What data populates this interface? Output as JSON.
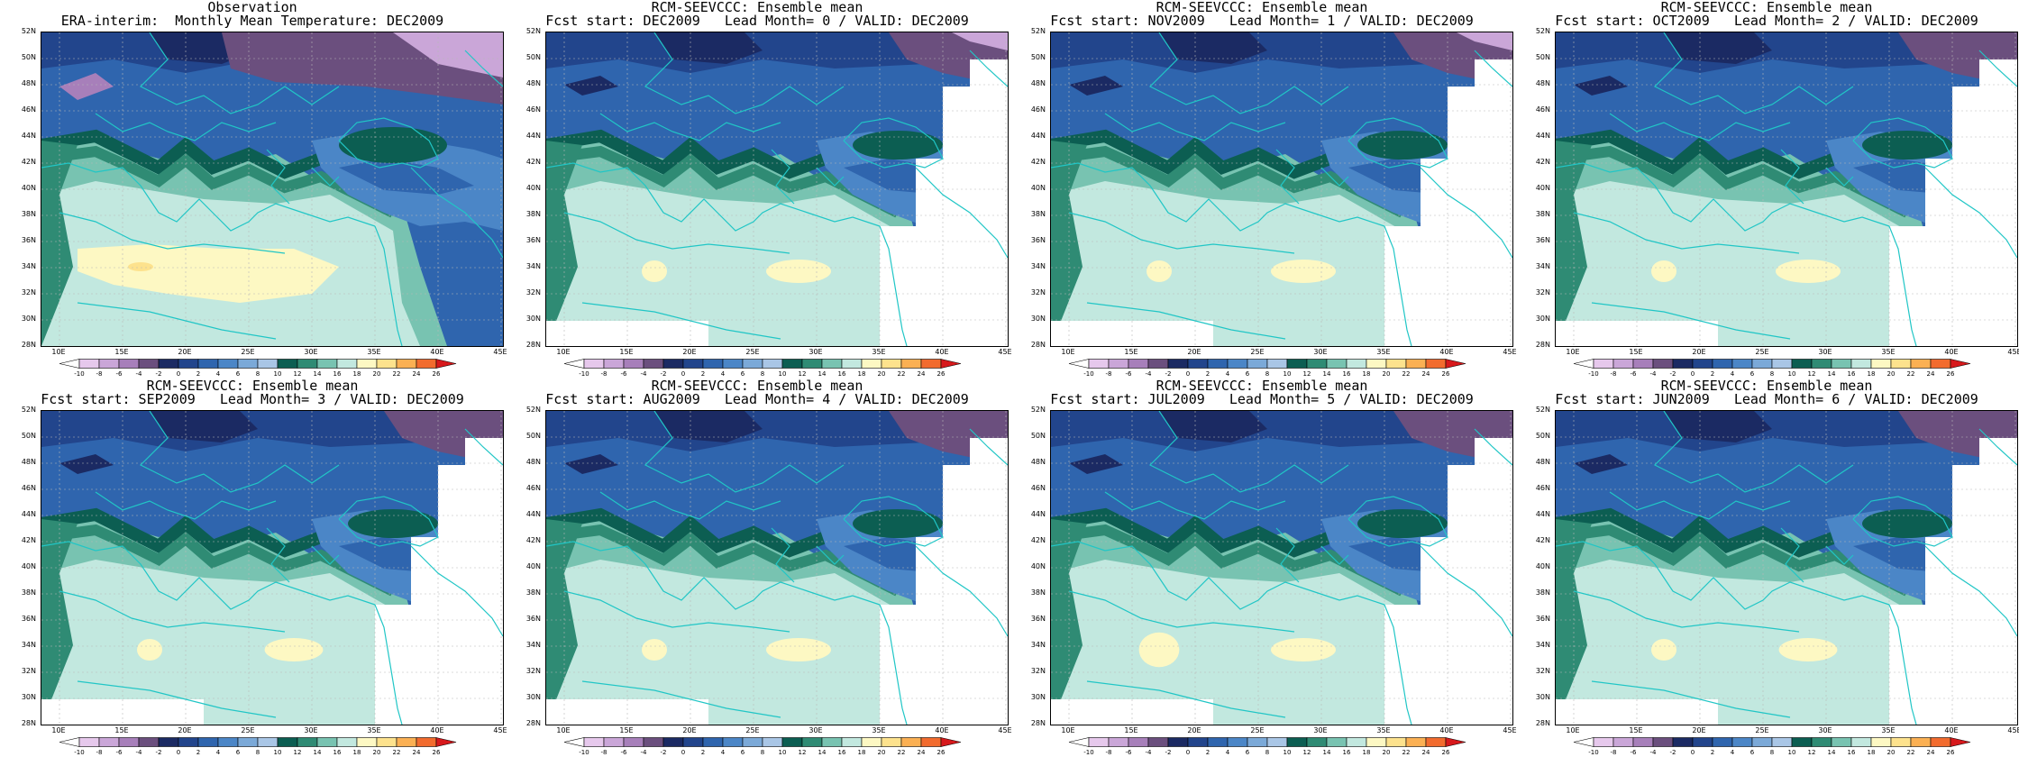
{
  "panels": [
    {
      "title1": "Observation",
      "title2": "ERA-interim:  Monthly Mean Temperature: DEC2009",
      "kind": "obs",
      "lead": null
    },
    {
      "title1": "RCM-SEEVCCC: Ensemble mean",
      "title2": "Fcst start: DEC2009   Lead Month= 0 / VALID: DEC2009",
      "kind": "fcst",
      "lead": 0
    },
    {
      "title1": "RCM-SEEVCCC: Ensemble mean",
      "title2": "Fcst start: NOV2009   Lead Month= 1 / VALID: DEC2009",
      "kind": "fcst",
      "lead": 1
    },
    {
      "title1": "RCM-SEEVCCC: Ensemble mean",
      "title2": "Fcst start: OCT2009   Lead Month= 2 / VALID: DEC2009",
      "kind": "fcst",
      "lead": 2
    },
    {
      "title1": "RCM-SEEVCCC: Ensemble mean",
      "title2": "Fcst start: SEP2009   Lead Month= 3 / VALID: DEC2009",
      "kind": "fcst",
      "lead": 3
    },
    {
      "title1": "RCM-SEEVCCC: Ensemble mean",
      "title2": "Fcst start: AUG2009   Lead Month= 4 / VALID: DEC2009",
      "kind": "fcst",
      "lead": 4
    },
    {
      "title1": "RCM-SEEVCCC: Ensemble mean",
      "title2": "Fcst start: JUL2009   Lead Month= 5 / VALID: DEC2009",
      "kind": "fcst",
      "lead": 5
    },
    {
      "title1": "RCM-SEEVCCC: Ensemble mean",
      "title2": "Fcst start: JUN2009   Lead Month= 6 / VALID: DEC2009",
      "kind": "fcst",
      "lead": 6
    }
  ],
  "axes": {
    "lat_labels": [
      "52N",
      "50N",
      "48N",
      "46N",
      "44N",
      "42N",
      "40N",
      "38N",
      "36N",
      "34N",
      "32N",
      "30N",
      "28N"
    ],
    "lon_labels": [
      "10E",
      "15E",
      "20E",
      "25E",
      "30E",
      "35E",
      "40E",
      "45E"
    ],
    "lat_range": [
      28,
      52
    ],
    "lon_range": [
      7,
      46
    ]
  },
  "colorbar": {
    "labels": [
      "-10",
      "-8",
      "-6",
      "-4",
      "-2",
      "0",
      "2",
      "4",
      "6",
      "8",
      "10",
      "12",
      "14",
      "16",
      "18",
      "20",
      "22",
      "24",
      "26"
    ],
    "colors": [
      "#ffffff",
      "#e6c8ec",
      "#caa6d8",
      "#a77fba",
      "#6b4f7e",
      "#1b2a63",
      "#22458c",
      "#2f65ae",
      "#4b86c7",
      "#7ba9d8",
      "#a9c6e6",
      "#0c5e52",
      "#2f8b74",
      "#78c3b1",
      "#c2e8df",
      "#fdf8c3",
      "#fde28d",
      "#fbb053",
      "#f26b2e",
      "#d7191c"
    ]
  }
}
